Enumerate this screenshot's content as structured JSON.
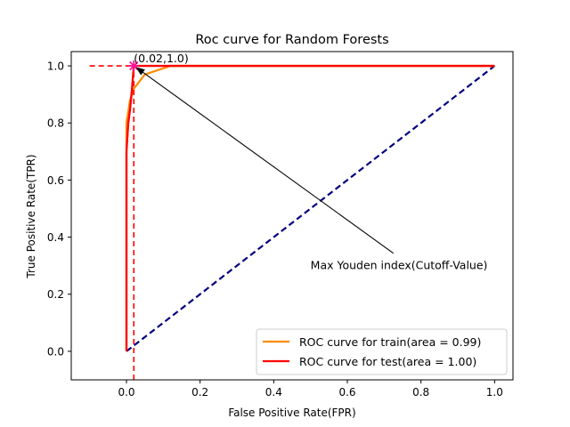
{
  "chart_data": {
    "type": "line",
    "title": "Roc curve for Random Forests",
    "xlabel": "False Positive Rate(FPR)",
    "ylabel": "True Positive Rate(TPR)",
    "xlim": [
      -0.15,
      1.05
    ],
    "ylim": [
      -0.1,
      1.05
    ],
    "x_ticks": [
      0.0,
      0.2,
      0.4,
      0.6,
      0.8,
      1.0
    ],
    "y_ticks": [
      0.0,
      0.2,
      0.4,
      0.6,
      0.8,
      1.0
    ],
    "x_tick_labels": [
      "0.0",
      "0.2",
      "0.4",
      "0.6",
      "0.8",
      "1.0"
    ],
    "y_tick_labels": [
      "0.0",
      "0.2",
      "0.4",
      "0.6",
      "0.8",
      "1.0"
    ],
    "grid": false,
    "legend_position": "lower-right",
    "series": [
      {
        "name": "ROC curve for train(area = 0.99)",
        "color": "#ff8c00",
        "points": [
          [
            0.0,
            0.0
          ],
          [
            0.0,
            0.8
          ],
          [
            0.01,
            0.88
          ],
          [
            0.02,
            0.92
          ],
          [
            0.05,
            0.97
          ],
          [
            0.12,
            1.0
          ],
          [
            1.0,
            1.0
          ]
        ]
      },
      {
        "name": "ROC curve for test(area = 1.00)",
        "color": "#ff0000",
        "points": [
          [
            0.0,
            0.0
          ],
          [
            0.0,
            0.7
          ],
          [
            0.005,
            0.8
          ],
          [
            0.01,
            0.85
          ],
          [
            0.015,
            0.92
          ],
          [
            0.02,
            1.0
          ],
          [
            1.0,
            1.0
          ]
        ]
      }
    ],
    "diagonal": {
      "color": "#000080",
      "points": [
        [
          0.0,
          0.0
        ],
        [
          1.0,
          1.0
        ]
      ]
    },
    "cutoff_lines": {
      "color": "#ff0000",
      "vertical": {
        "x": 0.02,
        "y_from": -0.1,
        "y_to": 1.0
      },
      "horizontal": {
        "y": 1.0,
        "x_from": -0.1,
        "x_to": 0.02
      }
    },
    "marker": {
      "x": 0.02,
      "y": 1.0,
      "color": "#ff1493",
      "label": "(0.02,1.0)"
    },
    "annotation": {
      "text": "Max Youden index(Cutoff-Value)",
      "text_x": 0.5,
      "text_y": 0.3,
      "arrow_to_x": 0.02,
      "arrow_to_y": 1.0
    }
  }
}
